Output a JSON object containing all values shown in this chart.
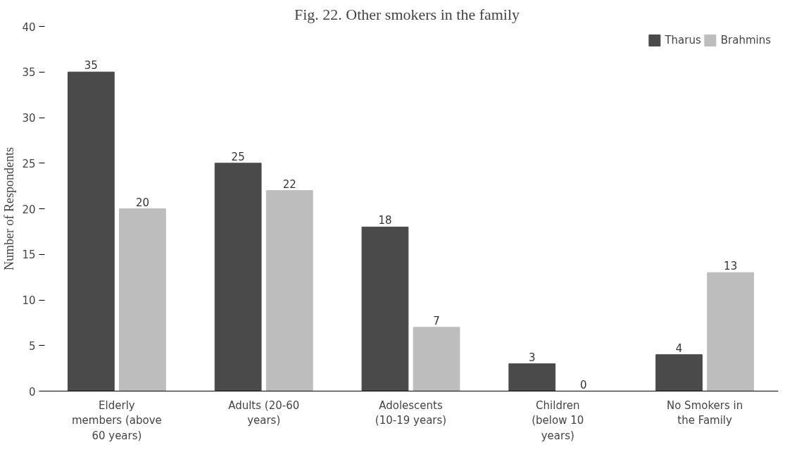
{
  "chart_data": {
    "type": "bar",
    "title": "Fig. 22.   Other smokers in the family",
    "ylabel": "Number of Respondents",
    "categories": [
      "Elderly members (above 60 years)",
      "Adults (20-60 years)",
      "Adolescents (10-19 years)",
      "Children (below 10 years)",
      "No Smokers in the Family"
    ],
    "series": [
      {
        "name": "Tharus",
        "color": "#4a4a4a",
        "values": [
          35,
          25,
          18,
          3,
          4
        ]
      },
      {
        "name": "Brahmins",
        "color": "#bdbdbd",
        "values": [
          20,
          22,
          7,
          0,
          13
        ]
      }
    ],
    "ylim": [
      0,
      40
    ],
    "yticks": [
      0,
      5,
      10,
      15,
      20,
      25,
      30,
      35,
      40
    ],
    "grid": false,
    "legend": "top right",
    "data_labels": true
  }
}
